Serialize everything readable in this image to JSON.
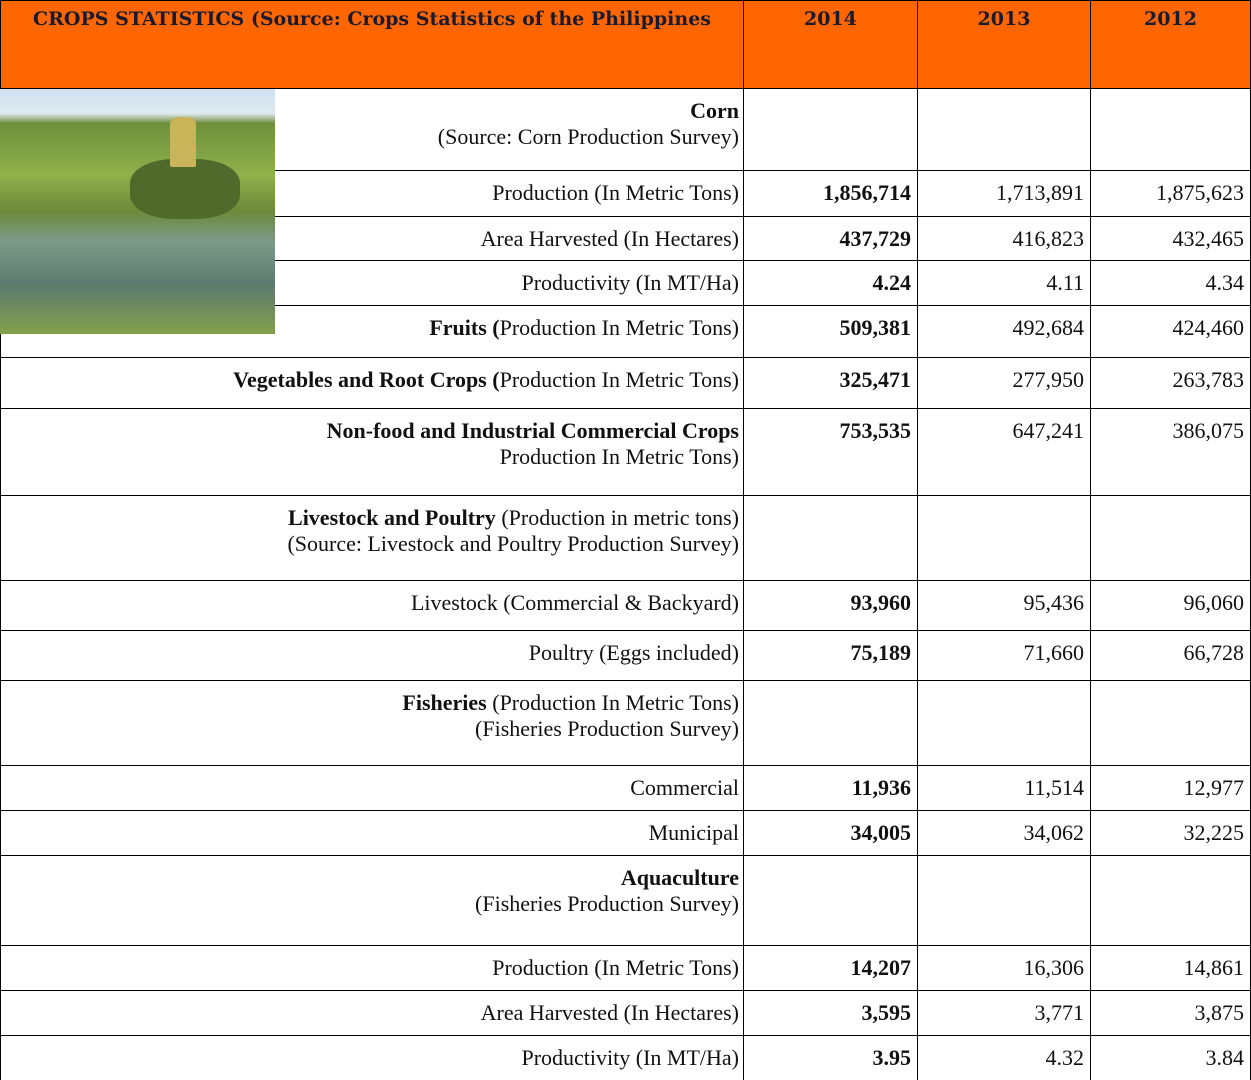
{
  "header": {
    "title": "CROPS STATISTICS (Source:  Crops Statistics of the Philippines",
    "years": [
      "2014",
      "2013",
      "2012"
    ]
  },
  "table": {
    "rows": [
      {
        "title": "Corn",
        "subtitle": "(Source:  Corn Production Survey)",
        "values": []
      },
      {
        "text": "Production (In Metric Tons)",
        "values": [
          "1,856,714",
          "1,713,891",
          "1,875,623"
        ]
      },
      {
        "text": "Area Harvested (In Hectares)",
        "values": [
          "437,729",
          "416,823",
          "432,465"
        ]
      },
      {
        "text": "Productivity (In MT/Ha)",
        "values": [
          "4.24",
          "4.11",
          "4.34"
        ]
      },
      {
        "title": "Fruits (",
        "text": "Production In Metric Tons)",
        "values": [
          "509,381",
          "492,684",
          "424,460"
        ]
      },
      {
        "title": "Vegetables and Root Crops (",
        "text": "Production In Metric Tons)",
        "values": [
          "325,471",
          "277,950",
          "263,783"
        ]
      },
      {
        "title": "Non-food and Industrial Commercial Crops",
        "subtitle": "Production In Metric Tons)",
        "values": [
          "753,535",
          "647,241",
          "386,075"
        ]
      },
      {
        "title": "Livestock and Poultry",
        "text": " (Production in metric tons)",
        "subtitle": "(Source:  Livestock and Poultry Production Survey)",
        "values": []
      },
      {
        "text": "Livestock (Commercial & Backyard)",
        "values": [
          "93,960",
          "95,436",
          "96,060"
        ]
      },
      {
        "text": "Poultry (Eggs included)",
        "values": [
          "75,189",
          "71,660",
          "66,728"
        ]
      },
      {
        "title": "Fisheries",
        "text": " (Production In Metric Tons)",
        "subtitle": "(Fisheries Production Survey)",
        "values": []
      },
      {
        "text": "Commercial",
        "values": [
          "11,936",
          "11,514",
          "12,977"
        ]
      },
      {
        "text": "Municipal",
        "values": [
          "34,005",
          "34,062",
          "32,225"
        ]
      },
      {
        "title": "Aquaculture",
        "subtitle": "(Fisheries Production Survey)",
        "values": []
      },
      {
        "text": "Production (In Metric Tons)",
        "values": [
          "14,207",
          "16,306",
          "14,861"
        ]
      },
      {
        "text": "Area Harvested (In Hectares)",
        "values": [
          "3,595",
          "3,771",
          "3,875"
        ]
      },
      {
        "text": "Productivity (In MT/Ha)",
        "values": [
          "3.95",
          "4.32",
          "3.84"
        ]
      }
    ]
  }
}
